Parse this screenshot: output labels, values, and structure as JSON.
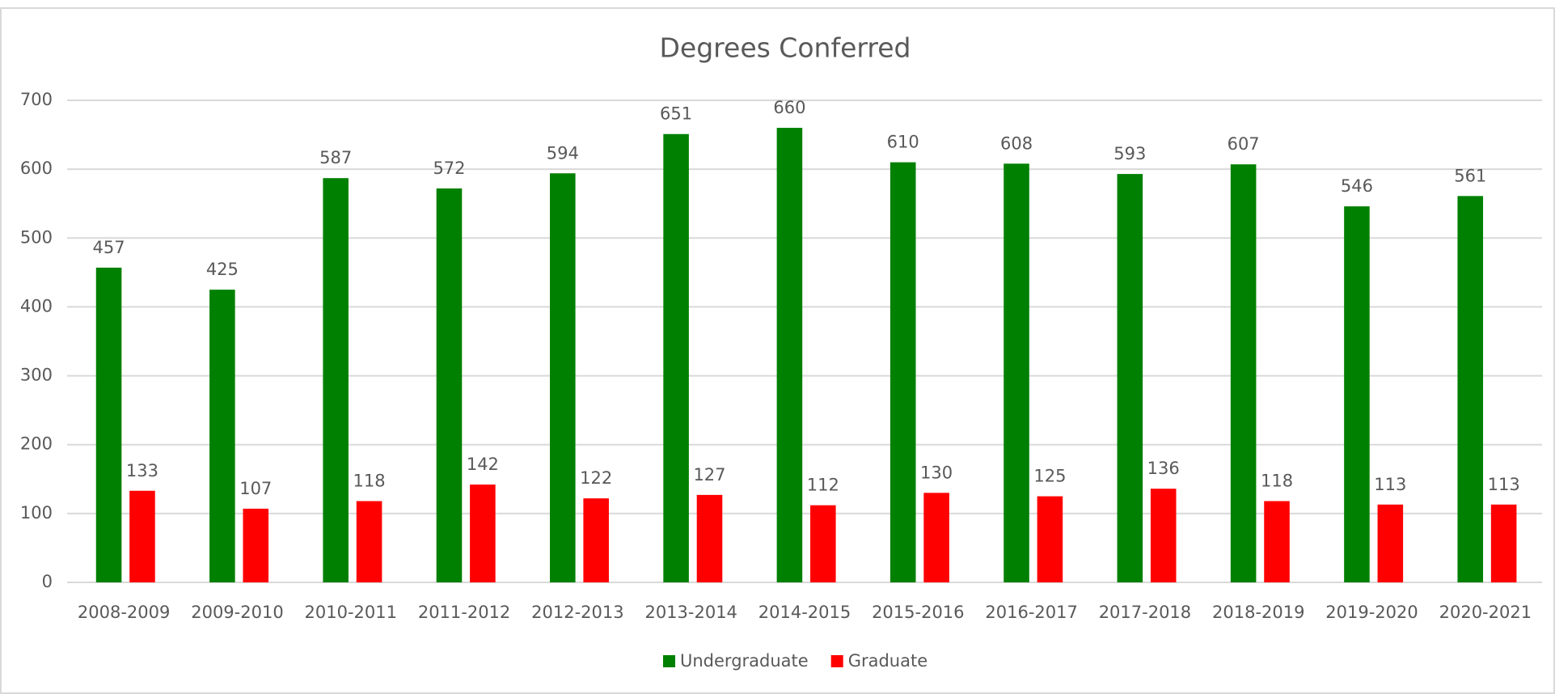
{
  "chart_data": {
    "type": "bar",
    "title": "Degrees Conferred",
    "categories": [
      "2008-2009",
      "2009-2010",
      "2010-2011",
      "2011-2012",
      "2012-2013",
      "2013-2014",
      "2014-2015",
      "2015-2016",
      "2016-2017",
      "2017-2018",
      "2018-2019",
      "2019-2020",
      "2020-2021"
    ],
    "series": [
      {
        "name": "Undergraduate",
        "color": "#008000",
        "values": [
          457,
          425,
          587,
          572,
          594,
          651,
          660,
          610,
          608,
          593,
          607,
          546,
          561
        ]
      },
      {
        "name": "Graduate",
        "color": "#ff0000",
        "values": [
          133,
          107,
          118,
          142,
          122,
          127,
          112,
          130,
          125,
          136,
          118,
          113,
          113
        ]
      }
    ],
    "ylim": [
      0,
      700
    ],
    "yticks": [
      0,
      100,
      200,
      300,
      400,
      500,
      600,
      700
    ],
    "grid": true,
    "legend": "bottom"
  }
}
